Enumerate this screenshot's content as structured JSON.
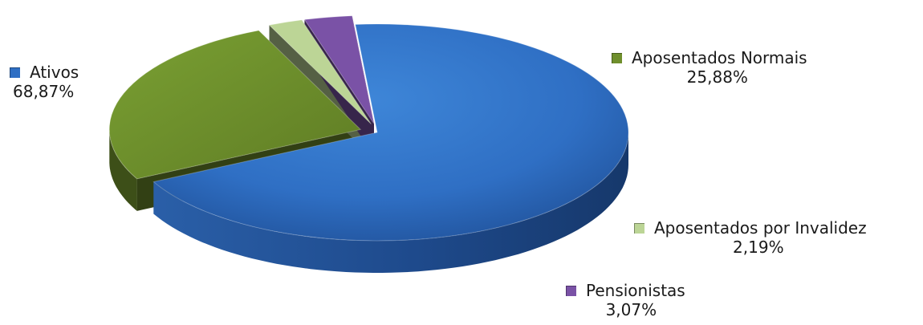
{
  "chart_data": {
    "type": "pie",
    "title": "",
    "slices": [
      {
        "label": "Ativos",
        "value": 68.87,
        "display": "68,87%",
        "color": "#2f6fc4"
      },
      {
        "label": "Aposentados Normais",
        "value": 25.88,
        "display": "25,88%",
        "color": "#6f8f2c"
      },
      {
        "label": "Aposentados por Invalidez",
        "value": 2.19,
        "display": "2,19%",
        "color": "#bcd596"
      },
      {
        "label": "Pensionistas",
        "value": 3.07,
        "display": "3,07%",
        "color": "#7a52a6"
      }
    ],
    "style": "3d",
    "legend": "labels-beside-slices"
  }
}
